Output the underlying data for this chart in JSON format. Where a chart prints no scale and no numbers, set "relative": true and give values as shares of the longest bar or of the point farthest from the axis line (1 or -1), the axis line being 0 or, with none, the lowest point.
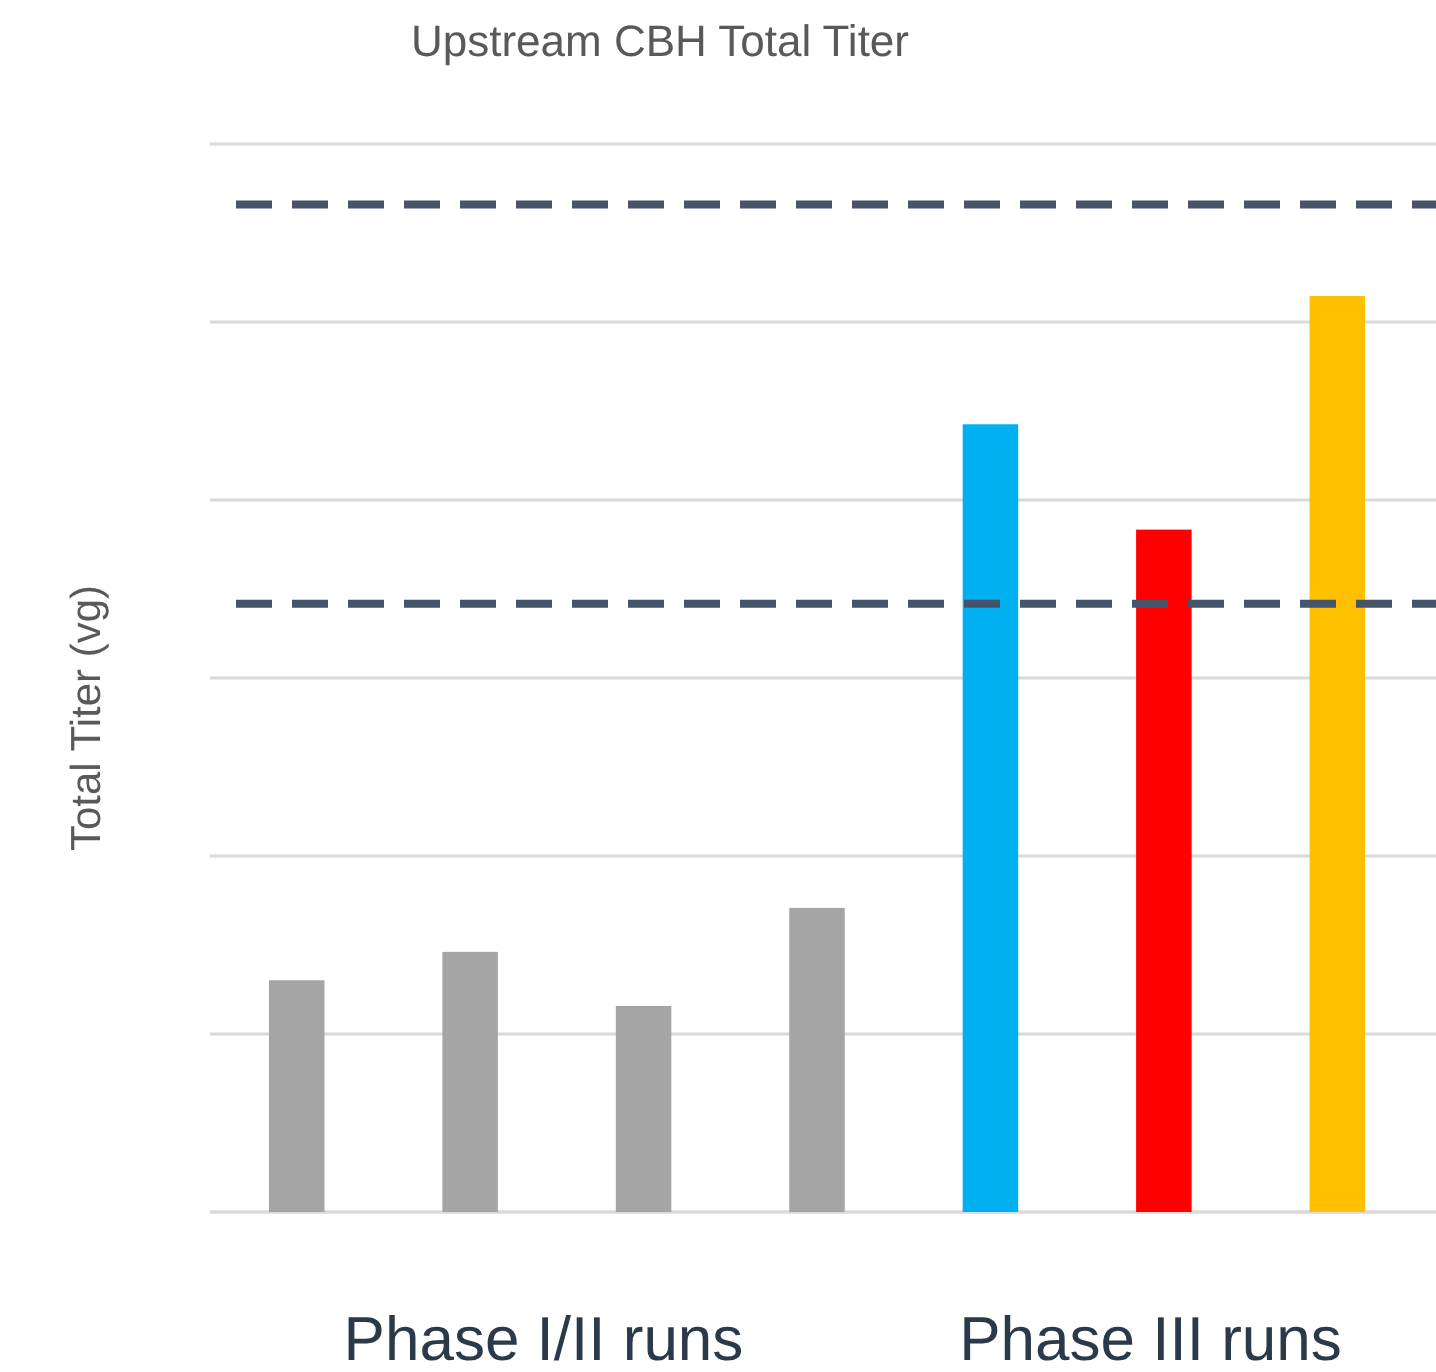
{
  "chart_data": {
    "type": "bar",
    "title": "Upstream CBH Total Titer",
    "ylabel": "Total Titer (vg)",
    "relative": true,
    "categories": [
      null,
      null,
      null,
      null,
      null,
      null,
      null
    ],
    "values": [
      0.253,
      0.284,
      0.225,
      0.332,
      0.86,
      0.745,
      1
    ],
    "colors": [
      "#a5a5a5",
      "#a5a5a5",
      "#a5a5a5",
      "#a5a5a5",
      "#00b0f0",
      "#ff0000",
      "#ffc000"
    ],
    "grid": "y",
    "ref_lines": [
      {
        "axis": "y",
        "value": 1.1,
        "color": "#44546a",
        "line_style": "dashed"
      },
      {
        "axis": "y",
        "value": 0.664,
        "color": "#44546a",
        "line_style": "dashed"
      }
    ],
    "annotations": [
      "Phase I/II runs",
      "Phase III runs"
    ]
  }
}
